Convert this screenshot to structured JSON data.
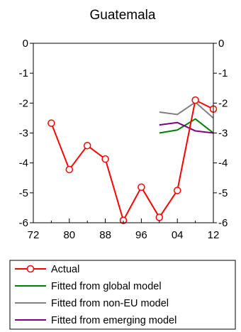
{
  "chart_data": {
    "type": "line",
    "title": "Guatemala",
    "xlabel": "",
    "ylabel": "",
    "xlim": [
      1972,
      2012
    ],
    "ylim": [
      -6,
      0
    ],
    "x_ticks": [
      1972,
      1980,
      1988,
      1996,
      2004,
      2012
    ],
    "x_tick_labels": [
      "72",
      "80",
      "88",
      "96",
      "04",
      "12"
    ],
    "y_ticks": [
      0,
      -1,
      -2,
      -3,
      -4,
      -5,
      -6
    ],
    "y_tick_labels": [
      "0",
      "-1",
      "-2",
      "-3",
      "-4",
      "-5",
      "-6"
    ],
    "grid": false,
    "legend_position": "below",
    "series": [
      {
        "name": "Actual",
        "color": "#ff0000",
        "marker": "circle",
        "x": [
          1976,
          1980,
          1984,
          1988,
          1992,
          1996,
          2000,
          2004,
          2008,
          2012
        ],
        "y": [
          -2.67,
          -4.22,
          -3.42,
          -3.87,
          -5.92,
          -4.81,
          -5.82,
          -4.92,
          -1.9,
          -2.2
        ]
      },
      {
        "name": "Fitted from global model",
        "color": "#008000",
        "marker": "none",
        "x": [
          2000,
          2004,
          2008,
          2012
        ],
        "y": [
          -3.0,
          -2.9,
          -2.53,
          -3.0
        ]
      },
      {
        "name": "Fitted from non-EU model",
        "color": "#808080",
        "marker": "none",
        "x": [
          2000,
          2004,
          2008,
          2012
        ],
        "y": [
          -2.3,
          -2.38,
          -1.97,
          -2.5
        ]
      },
      {
        "name": "Fitted from emerging model",
        "color": "#800080",
        "marker": "none",
        "x": [
          2000,
          2004,
          2008,
          2012
        ],
        "y": [
          -2.73,
          -2.65,
          -2.93,
          -3.0
        ]
      }
    ]
  }
}
